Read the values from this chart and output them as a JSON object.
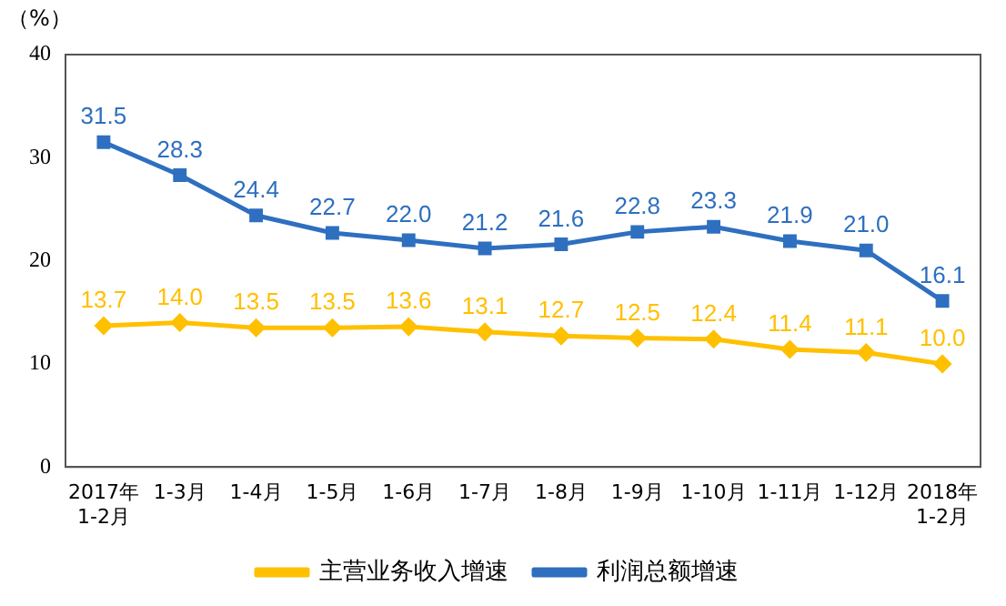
{
  "chart_data": {
    "type": "line",
    "ylabel": "（%）",
    "categories": [
      "2017年\n1-2月",
      "1-3月",
      "1-4月",
      "1-5月",
      "1-6月",
      "1-7月",
      "1-8月",
      "1-9月",
      "1-10月",
      "1-11月",
      "1-12月",
      "2018年\n1-2月"
    ],
    "series": [
      {
        "name": "主营业务收入增速",
        "color": "#ffc000",
        "marker": "diamond",
        "values": [
          13.7,
          14.0,
          13.5,
          13.5,
          13.6,
          13.1,
          12.7,
          12.5,
          12.4,
          11.4,
          11.1,
          10.0
        ],
        "value_labels": [
          "13.7",
          "14.0",
          "13.5",
          "13.5",
          "13.6",
          "13.1",
          "12.7",
          "12.5",
          "12.4",
          "11.4",
          "11.1",
          "10.0"
        ]
      },
      {
        "name": "利润总额增速",
        "color": "#2e6fc0",
        "marker": "square",
        "values": [
          31.5,
          28.3,
          24.4,
          22.7,
          22.0,
          21.2,
          21.6,
          22.8,
          23.3,
          21.9,
          21.0,
          16.1
        ],
        "value_labels": [
          "31.5",
          "28.3",
          "24.4",
          "22.7",
          "22.0",
          "21.2",
          "21.6",
          "22.8",
          "23.3",
          "21.9",
          "21.0",
          "16.1"
        ]
      }
    ],
    "ylim": [
      0,
      40
    ],
    "yticks": [
      0,
      10,
      20,
      30,
      40
    ],
    "grid": false,
    "legend": "bottom",
    "line_style": "solid"
  }
}
